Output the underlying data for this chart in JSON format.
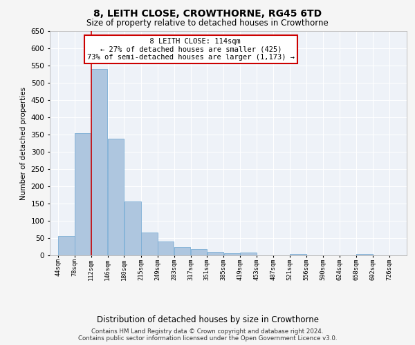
{
  "title": "8, LEITH CLOSE, CROWTHORNE, RG45 6TD",
  "subtitle": "Size of property relative to detached houses in Crowthorne",
  "xlabel": "Distribution of detached houses by size in Crowthorne",
  "ylabel": "Number of detached properties",
  "footer_line1": "Contains HM Land Registry data © Crown copyright and database right 2024.",
  "footer_line2": "Contains public sector information licensed under the Open Government Licence v3.0.",
  "annotation_line1": "8 LEITH CLOSE: 114sqm",
  "annotation_line2": "← 27% of detached houses are smaller (425)",
  "annotation_line3": "73% of semi-detached houses are larger (1,173) →",
  "bar_left_edges": [
    44,
    78,
    112,
    146,
    180,
    215,
    249,
    283,
    317,
    351,
    385,
    419,
    453,
    487,
    521,
    556,
    590,
    624,
    658,
    692
  ],
  "bar_widths": [
    34,
    34,
    34,
    34,
    35,
    34,
    34,
    34,
    34,
    34,
    34,
    34,
    34,
    34,
    35,
    34,
    34,
    34,
    34,
    34
  ],
  "bar_heights": [
    57,
    354,
    541,
    339,
    156,
    67,
    41,
    24,
    18,
    10,
    7,
    9,
    0,
    0,
    5,
    0,
    0,
    0,
    5,
    0
  ],
  "xtick_labels": [
    "44sqm",
    "78sqm",
    "112sqm",
    "146sqm",
    "180sqm",
    "215sqm",
    "249sqm",
    "283sqm",
    "317sqm",
    "351sqm",
    "385sqm",
    "419sqm",
    "453sqm",
    "487sqm",
    "521sqm",
    "556sqm",
    "590sqm",
    "624sqm",
    "658sqm",
    "692sqm",
    "726sqm"
  ],
  "bar_color": "#aec6df",
  "bar_edge_color": "#7aadd4",
  "vline_color": "#cc0000",
  "vline_x": 112,
  "annotation_box_color": "#cc0000",
  "bg_color": "#eef2f8",
  "grid_color": "#ffffff",
  "ylim": [
    0,
    650
  ],
  "yticks": [
    0,
    50,
    100,
    150,
    200,
    250,
    300,
    350,
    400,
    450,
    500,
    550,
    600,
    650
  ]
}
